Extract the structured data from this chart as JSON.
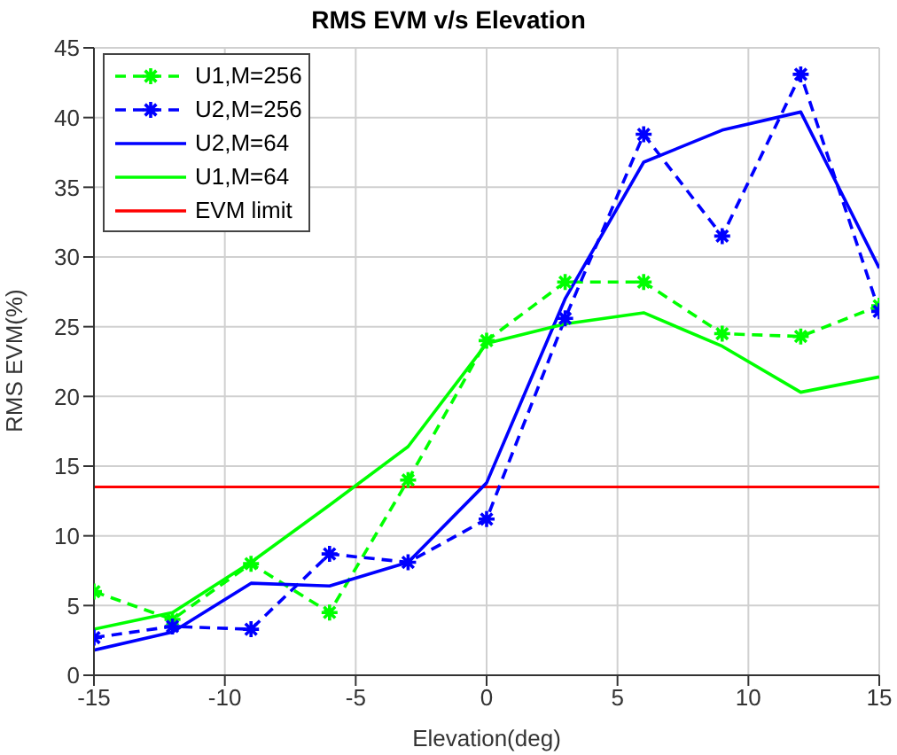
{
  "chart_data": {
    "type": "line",
    "title": "RMS EVM v/s Elevation",
    "xlabel": "Elevation(deg)",
    "ylabel": "RMS EVM(%)",
    "x": [
      -15,
      -12,
      -9,
      -6,
      -3,
      0,
      3,
      6,
      9,
      12,
      15
    ],
    "series": [
      {
        "name": "U1,M=256",
        "color": "#00ff00",
        "line_style": "dashed",
        "marker": "cross",
        "values": [
          6,
          4,
          8,
          4.5,
          14,
          24,
          28.2,
          28.2,
          24.5,
          24.3,
          26.5
        ]
      },
      {
        "name": "U2,M=256",
        "color": "#0000ff",
        "line_style": "dashed",
        "marker": "cross",
        "values": [
          2.7,
          3.5,
          3.3,
          8.7,
          8.1,
          11.2,
          25.6,
          38.8,
          31.5,
          43.1,
          26.1
        ]
      },
      {
        "name": "U2,M=64",
        "color": "#0000ff",
        "line_style": "solid",
        "marker": "none",
        "values": [
          1.8,
          3.1,
          6.6,
          6.4,
          8.1,
          13.8,
          27,
          36.8,
          39.1,
          40.4,
          29.2
        ]
      },
      {
        "name": "U1,M=64",
        "color": "#00ff00",
        "line_style": "solid",
        "marker": "none",
        "values": [
          3.3,
          4.5,
          8.1,
          12.2,
          16.4,
          23.8,
          25.2,
          26,
          23.6,
          20.3,
          21.4
        ]
      }
    ],
    "ref_lines": [
      {
        "axis": "y",
        "value": 13.5,
        "label": "EVM limit",
        "color": "#ff0000"
      }
    ],
    "xlim": [
      -15,
      15
    ],
    "xticks": [
      -15,
      -10,
      -5,
      0,
      5,
      10,
      15
    ],
    "ylim": [
      0,
      45
    ],
    "yticks": [
      0,
      5,
      10,
      15,
      20,
      25,
      30,
      35,
      40,
      45
    ],
    "grid": true,
    "legend": "top left"
  }
}
